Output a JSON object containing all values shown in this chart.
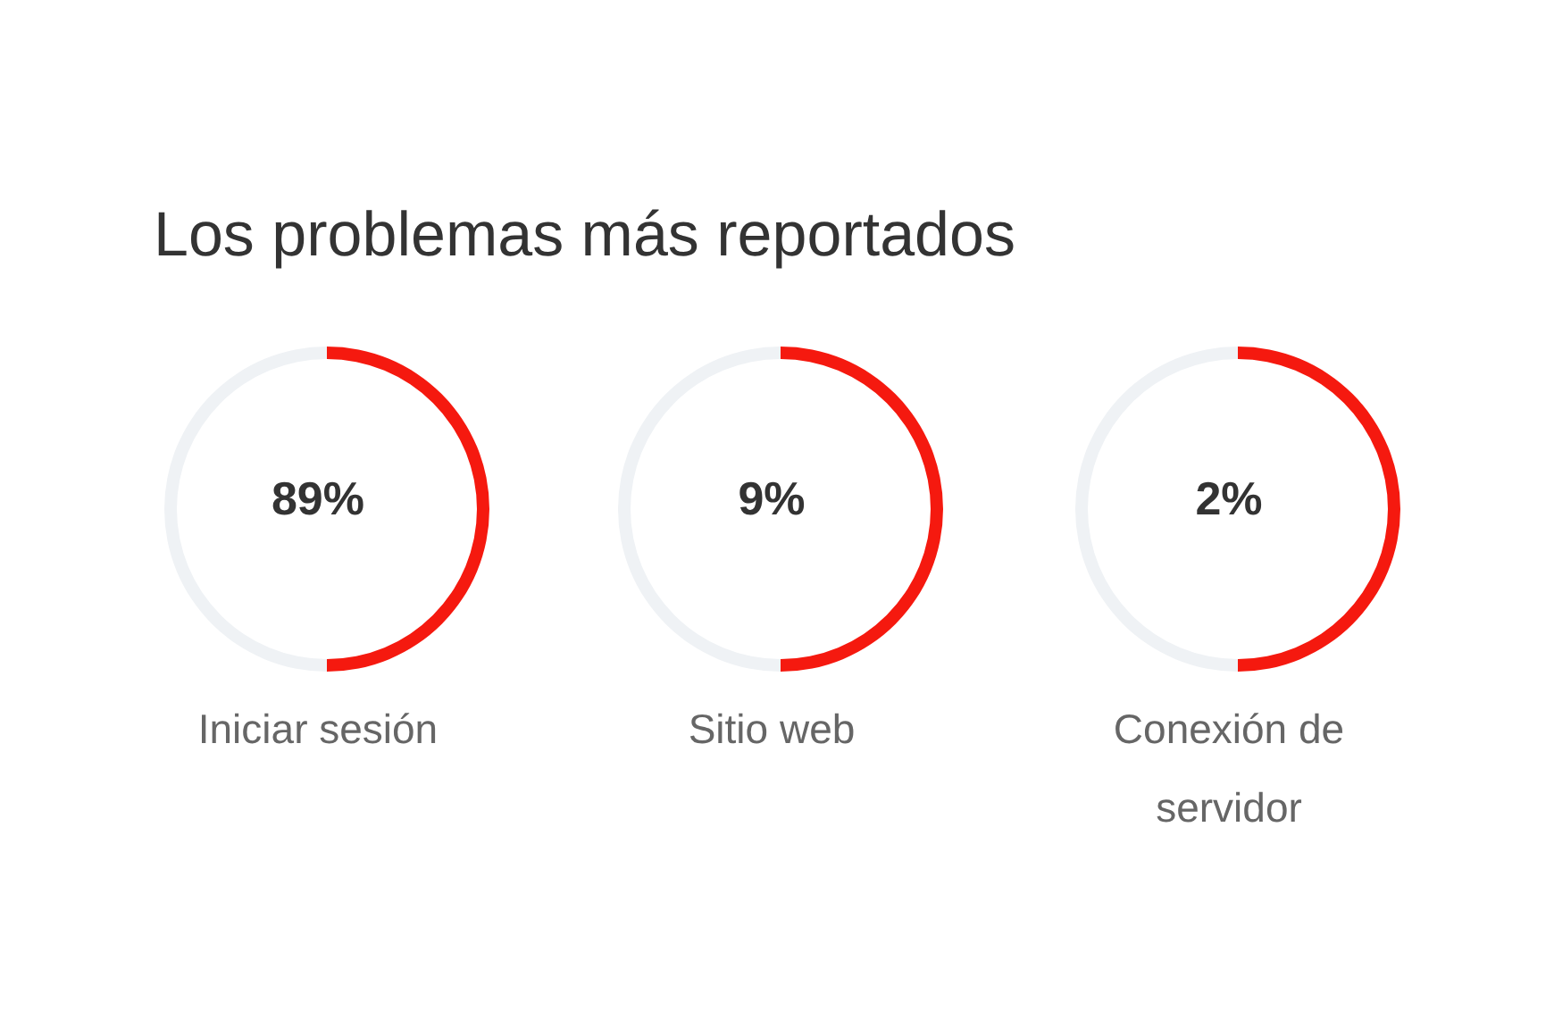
{
  "chart_data": [
    {
      "type": "donut",
      "title": "Los problemas más reportados",
      "categories": [
        "Iniciar sesión",
        null
      ],
      "values": [
        50,
        50
      ],
      "colors": [
        "#f5190f",
        "#eff2f5"
      ],
      "annotations": [
        "89%"
      ]
    },
    {
      "type": "donut",
      "categories": [
        "Sitio web",
        null
      ],
      "values": [
        50,
        50
      ],
      "colors": [
        "#f5190f",
        "#eff2f5"
      ],
      "annotations": [
        "9%"
      ]
    },
    {
      "type": "donut",
      "categories": [
        "Conexión de servidor",
        null
      ],
      "values": [
        50,
        50
      ],
      "colors": [
        "#f5190f",
        "#eff2f5"
      ],
      "annotations": [
        "2%"
      ]
    }
  ]
}
